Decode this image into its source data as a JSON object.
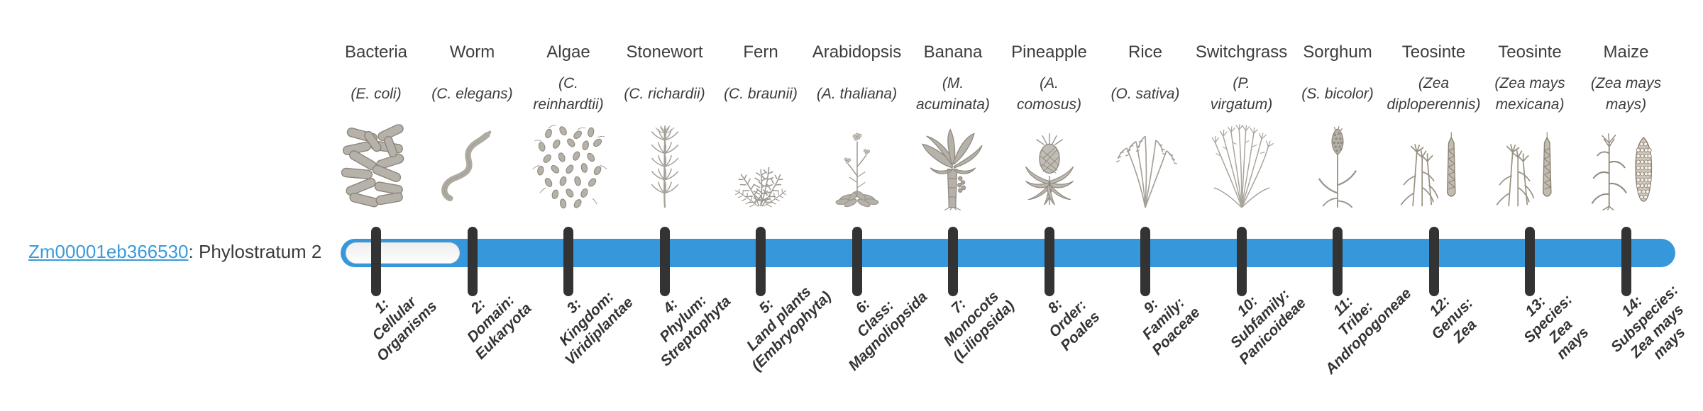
{
  "page": {
    "background": "#ffffff"
  },
  "gene": {
    "id": "Zm00001eb366530",
    "suffix": ": Phylostratum 2",
    "phylostratum_number": 2
  },
  "bar": {
    "fill_color": "#3697db",
    "unfilled_color": "#f7f7f7",
    "tick_color": "#333333"
  },
  "colors": {
    "link_blue": "#3a9bd9",
    "text_dark": "#3d3d3d",
    "label_dark": "#333333",
    "icon_gray": "#b0aba2"
  },
  "taxa": [
    {
      "common": "Bacteria",
      "latin": "(E. coli)",
      "icon": "bacteria-icon",
      "stratum_label": "1:\nCellular\nOrganisms"
    },
    {
      "common": "Worm",
      "latin": "(C. elegans)",
      "icon": "worm-icon",
      "stratum_label": "2:\nDomain:\nEukaryota"
    },
    {
      "common": "Algae",
      "latin": "(C.\nreinhardtii)",
      "icon": "algae-icon",
      "stratum_label": "3:\nKingdom:\nViridiplantae"
    },
    {
      "common": "Stonewort",
      "latin": "(C. richardii)",
      "icon": "stonewort-icon",
      "stratum_label": "4:\nPhylum:\nStreptophyta"
    },
    {
      "common": "Fern",
      "latin": "(C. braunii)",
      "icon": "fern-icon",
      "stratum_label": "5:\nLand plants\n(Embryophyta)"
    },
    {
      "common": "Arabidopsis",
      "latin": "(A. thaliana)",
      "icon": "arabidopsis-icon",
      "stratum_label": "6:\nClass:\nMagnoliopsida"
    },
    {
      "common": "Banana",
      "latin": "(M.\nacuminata)",
      "icon": "banana-icon",
      "stratum_label": "7:\nMonocots\n(Liliopsida)"
    },
    {
      "common": "Pineapple",
      "latin": "(A.\ncomosus)",
      "icon": "pineapple-icon",
      "stratum_label": "8:\nOrder:\nPoales"
    },
    {
      "common": "Rice",
      "latin": "(O. sativa)",
      "icon": "rice-icon",
      "stratum_label": "9:\nFamily:\nPoaceae"
    },
    {
      "common": "Switchgrass",
      "latin": "(P.\nvirgatum)",
      "icon": "switchgrass-icon",
      "stratum_label": "10:\nSubfamily:\nPanicoideae"
    },
    {
      "common": "Sorghum",
      "latin": "(S. bicolor)",
      "icon": "sorghum-icon",
      "stratum_label": "11:\nTribe:\nAndropogoneae"
    },
    {
      "common": "Teosinte",
      "latin": "(Zea\ndiploperennis)",
      "icon": "teosinte-icon",
      "stratum_label": "12:\nGenus:\nZea"
    },
    {
      "common": "Teosinte",
      "latin": "(Zea mays\nmexicana)",
      "icon": "teosinte-icon",
      "stratum_label": "13:\nSpecies:\nZea\nmays"
    },
    {
      "common": "Maize",
      "latin": "(Zea mays\nmays)",
      "icon": "maize-icon",
      "stratum_label": "14:\nSubspecies:\nZea mays\nmays"
    }
  ]
}
